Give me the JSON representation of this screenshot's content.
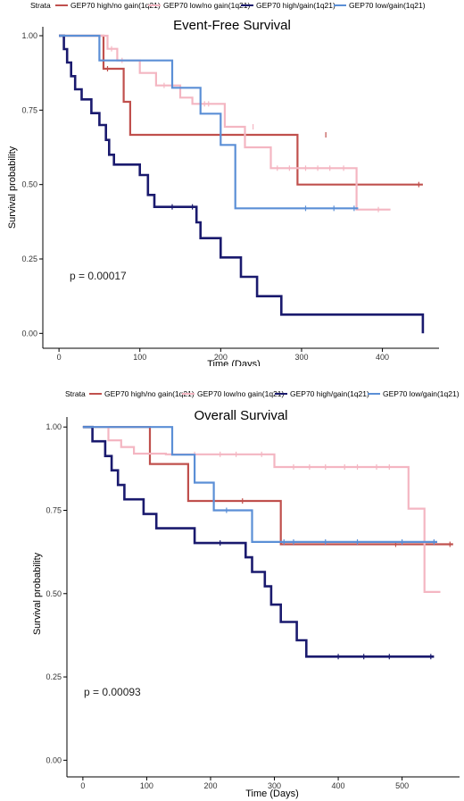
{
  "colors": {
    "high_no_gain": "#c0504d",
    "low_no_gain": "#f4b6c2",
    "high_gain": "#1a1a6e",
    "low_gain": "#5b8fd6"
  },
  "chart_data": [
    {
      "type": "line",
      "title": "Event-Free Survival",
      "xlabel": "Time (Days)",
      "ylabel": "Survival probability",
      "legend_title": "Strata",
      "legend_position": "top",
      "pvalue": "p = 0.00017",
      "xlim": [
        -20,
        470
      ],
      "ylim": [
        -0.05,
        1.03
      ],
      "xticks": [
        0,
        100,
        200,
        300,
        400
      ],
      "yticks": [
        0.0,
        0.25,
        0.5,
        0.75,
        1.0
      ],
      "ytick_labels": [
        "0.00",
        "0.25",
        "0.50",
        "0.75",
        "1.00"
      ],
      "series": [
        {
          "name": "GEP70 high/no gain(1q21)",
          "color_key": "high_no_gain",
          "steps": [
            [
              0,
              1
            ],
            [
              55,
              1
            ],
            [
              55,
              0.889
            ],
            [
              80,
              0.889
            ],
            [
              80,
              0.778
            ],
            [
              88,
              0.778
            ],
            [
              88,
              0.667
            ],
            [
              295,
              0.667
            ],
            [
              295,
              0.5
            ],
            [
              450,
              0.5
            ]
          ],
          "censors": [
            [
              60,
              0.889
            ],
            [
              330,
              0.667
            ],
            [
              445,
              0.5
            ]
          ]
        },
        {
          "name": "GEP70 low/no gain(1q21)",
          "color_key": "low_no_gain",
          "steps": [
            [
              0,
              1
            ],
            [
              60,
              1
            ],
            [
              60,
              0.956
            ],
            [
              72,
              0.956
            ],
            [
              72,
              0.917
            ],
            [
              100,
              0.917
            ],
            [
              100,
              0.875
            ],
            [
              120,
              0.875
            ],
            [
              120,
              0.833
            ],
            [
              150,
              0.833
            ],
            [
              150,
              0.792
            ],
            [
              165,
              0.792
            ],
            [
              165,
              0.771
            ],
            [
              205,
              0.771
            ],
            [
              205,
              0.694
            ],
            [
              230,
              0.694
            ],
            [
              230,
              0.625
            ],
            [
              262,
              0.625
            ],
            [
              262,
              0.555
            ],
            [
              368,
              0.555
            ],
            [
              368,
              0.416
            ],
            [
              410,
              0.416
            ]
          ],
          "censors": [
            [
              65,
              0.956
            ],
            [
              78,
              0.917
            ],
            [
              130,
              0.833
            ],
            [
              180,
              0.771
            ],
            [
              185,
              0.771
            ],
            [
              240,
              0.694
            ],
            [
              270,
              0.555
            ],
            [
              285,
              0.555
            ],
            [
              305,
              0.555
            ],
            [
              320,
              0.555
            ],
            [
              335,
              0.555
            ],
            [
              352,
              0.555
            ],
            [
              395,
              0.416
            ]
          ]
        },
        {
          "name": "GEP70 high/gain(1q21)",
          "color_key": "high_gain",
          "steps": [
            [
              0,
              1
            ],
            [
              6,
              1
            ],
            [
              6,
              0.955
            ],
            [
              10,
              0.955
            ],
            [
              10,
              0.91
            ],
            [
              15,
              0.91
            ],
            [
              15,
              0.864
            ],
            [
              20,
              0.864
            ],
            [
              20,
              0.82
            ],
            [
              28,
              0.82
            ],
            [
              28,
              0.786
            ],
            [
              40,
              0.786
            ],
            [
              40,
              0.74
            ],
            [
              50,
              0.74
            ],
            [
              50,
              0.7
            ],
            [
              58,
              0.7
            ],
            [
              58,
              0.65
            ],
            [
              62,
              0.65
            ],
            [
              62,
              0.6
            ],
            [
              68,
              0.6
            ],
            [
              68,
              0.567
            ],
            [
              100,
              0.567
            ],
            [
              100,
              0.532
            ],
            [
              110,
              0.532
            ],
            [
              110,
              0.465
            ],
            [
              118,
              0.465
            ],
            [
              118,
              0.425
            ],
            [
              170,
              0.425
            ],
            [
              170,
              0.373
            ],
            [
              175,
              0.373
            ],
            [
              175,
              0.32
            ],
            [
              200,
              0.32
            ],
            [
              200,
              0.255
            ],
            [
              225,
              0.255
            ],
            [
              225,
              0.19
            ],
            [
              245,
              0.19
            ],
            [
              245,
              0.125
            ],
            [
              275,
              0.125
            ],
            [
              275,
              0.063
            ],
            [
              450,
              0.063
            ],
            [
              450,
              0.0
            ]
          ],
          "censors": [
            [
              140,
              0.425
            ],
            [
              165,
              0.425
            ]
          ]
        },
        {
          "name": "GEP70 low/gain(1q21)",
          "color_key": "low_gain",
          "steps": [
            [
              0,
              1
            ],
            [
              50,
              1
            ],
            [
              50,
              0.917
            ],
            [
              140,
              0.917
            ],
            [
              140,
              0.825
            ],
            [
              175,
              0.825
            ],
            [
              175,
              0.738
            ],
            [
              200,
              0.738
            ],
            [
              200,
              0.633
            ],
            [
              218,
              0.633
            ],
            [
              218,
              0.42
            ],
            [
              370,
              0.42
            ]
          ],
          "censors": [
            [
              305,
              0.42
            ],
            [
              340,
              0.42
            ],
            [
              365,
              0.42
            ]
          ]
        }
      ]
    },
    {
      "type": "line",
      "title": "Overall Survival",
      "xlabel": "Time (Days)",
      "ylabel": "Survival probability",
      "legend_title": "Strata",
      "legend_position": "top",
      "pvalue": "p = 0.00093",
      "xlim": [
        -25,
        590
      ],
      "ylim": [
        -0.05,
        1.03
      ],
      "xticks": [
        0,
        100,
        200,
        300,
        400,
        500
      ],
      "yticks": [
        0.0,
        0.25,
        0.5,
        0.75,
        1.0
      ],
      "ytick_labels": [
        "0.00",
        "0.25",
        "0.50",
        "0.75",
        "1.00"
      ],
      "series": [
        {
          "name": "GEP70 high/no gain(1q21)",
          "color_key": "high_no_gain",
          "steps": [
            [
              0,
              1
            ],
            [
              105,
              1
            ],
            [
              105,
              0.889
            ],
            [
              165,
              0.889
            ],
            [
              165,
              0.778
            ],
            [
              310,
              0.778
            ],
            [
              310,
              0.648
            ],
            [
              580,
              0.648
            ]
          ],
          "censors": [
            [
              250,
              0.778
            ],
            [
              490,
              0.648
            ],
            [
              575,
              0.648
            ]
          ]
        },
        {
          "name": "GEP70 low/no gain(1q21)",
          "color_key": "low_no_gain",
          "steps": [
            [
              0,
              1
            ],
            [
              40,
              1
            ],
            [
              40,
              0.96
            ],
            [
              60,
              0.96
            ],
            [
              60,
              0.94
            ],
            [
              80,
              0.94
            ],
            [
              80,
              0.92
            ],
            [
              130,
              0.92
            ],
            [
              130,
              0.918
            ],
            [
              300,
              0.918
            ],
            [
              300,
              0.88
            ],
            [
              510,
              0.88
            ],
            [
              510,
              0.755
            ],
            [
              535,
              0.755
            ],
            [
              535,
              0.505
            ],
            [
              560,
              0.505
            ]
          ],
          "censors": [
            [
              175,
              0.918
            ],
            [
              215,
              0.918
            ],
            [
              240,
              0.918
            ],
            [
              280,
              0.918
            ],
            [
              330,
              0.88
            ],
            [
              355,
              0.88
            ],
            [
              380,
              0.88
            ],
            [
              410,
              0.88
            ],
            [
              430,
              0.88
            ],
            [
              460,
              0.88
            ],
            [
              480,
              0.88
            ]
          ]
        },
        {
          "name": "GEP70 high/gain(1q21)",
          "color_key": "high_gain",
          "steps": [
            [
              0,
              1
            ],
            [
              15,
              1
            ],
            [
              15,
              0.957
            ],
            [
              35,
              0.957
            ],
            [
              35,
              0.913
            ],
            [
              45,
              0.913
            ],
            [
              45,
              0.87
            ],
            [
              55,
              0.87
            ],
            [
              55,
              0.826
            ],
            [
              65,
              0.826
            ],
            [
              65,
              0.783
            ],
            [
              95,
              0.783
            ],
            [
              95,
              0.739
            ],
            [
              115,
              0.739
            ],
            [
              115,
              0.696
            ],
            [
              175,
              0.696
            ],
            [
              175,
              0.652
            ],
            [
              255,
              0.652
            ],
            [
              255,
              0.609
            ],
            [
              265,
              0.609
            ],
            [
              265,
              0.565
            ],
            [
              285,
              0.565
            ],
            [
              285,
              0.522
            ],
            [
              295,
              0.522
            ],
            [
              295,
              0.467
            ],
            [
              310,
              0.467
            ],
            [
              310,
              0.415
            ],
            [
              335,
              0.415
            ],
            [
              335,
              0.36
            ],
            [
              350,
              0.36
            ],
            [
              350,
              0.311
            ],
            [
              550,
              0.311
            ]
          ],
          "censors": [
            [
              215,
              0.652
            ],
            [
              400,
              0.311
            ],
            [
              440,
              0.311
            ],
            [
              480,
              0.311
            ],
            [
              545,
              0.311
            ]
          ]
        },
        {
          "name": "GEP70 low/gain(1q21)",
          "color_key": "low_gain",
          "steps": [
            [
              0,
              1
            ],
            [
              140,
              1
            ],
            [
              140,
              0.917
            ],
            [
              175,
              0.917
            ],
            [
              175,
              0.833
            ],
            [
              205,
              0.833
            ],
            [
              205,
              0.75
            ],
            [
              265,
              0.75
            ],
            [
              265,
              0.655
            ],
            [
              555,
              0.655
            ]
          ],
          "censors": [
            [
              225,
              0.75
            ],
            [
              315,
              0.655
            ],
            [
              330,
              0.655
            ],
            [
              380,
              0.655
            ],
            [
              430,
              0.655
            ],
            [
              500,
              0.655
            ],
            [
              550,
              0.655
            ]
          ]
        }
      ]
    }
  ]
}
